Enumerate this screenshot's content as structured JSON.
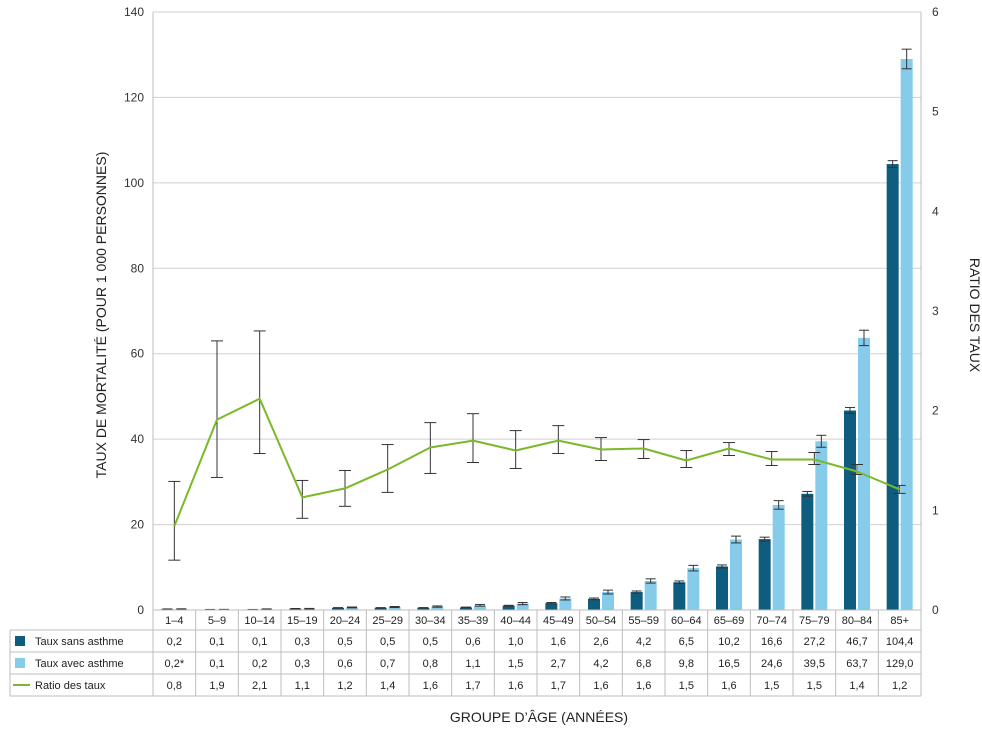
{
  "chart_data": {
    "type": "bar+line",
    "xlabel": "GROUPE D’ÂGE (ANNÉES)",
    "ylabel_left": "TAUX DE MORTALITÉ (POUR 1 000 PERSONNES)",
    "ylabel_right": "RATIO DES TAUX",
    "ylim_left": [
      0,
      140
    ],
    "ylim_right": [
      0,
      6
    ],
    "yticks_left": [
      "0",
      "20",
      "40",
      "60",
      "80",
      "100",
      "120",
      "140"
    ],
    "yticks_right": [
      "0",
      "1",
      "2",
      "3",
      "4",
      "5",
      "6"
    ],
    "categories": [
      "1–4",
      "5–9",
      "10–14",
      "15–19",
      "20–24",
      "25–29",
      "30–34",
      "35–39",
      "40–44",
      "45–49",
      "50–54",
      "55–59",
      "60–64",
      "65–69",
      "70–74",
      "75–79",
      "80–84",
      "85+"
    ],
    "series": [
      {
        "name": "Taux sans asthme",
        "kind": "bar",
        "axis": "left",
        "color": "#0e5c7e",
        "values": [
          0.2,
          0.1,
          0.1,
          0.3,
          0.5,
          0.5,
          0.5,
          0.6,
          1.0,
          1.6,
          2.6,
          4.2,
          6.5,
          10.2,
          16.6,
          27.2,
          46.7,
          104.4
        ],
        "labels": [
          "0,2",
          "0,1",
          "0,1",
          "0,3",
          "0,5",
          "0,5",
          "0,5",
          "0,6",
          "1,0",
          "1,6",
          "2,6",
          "4,2",
          "6,5",
          "10,2",
          "16,6",
          "27,2",
          "46,7",
          "104,4"
        ],
        "error": [
          0.05,
          0.03,
          0.03,
          0.05,
          0.06,
          0.06,
          0.07,
          0.08,
          0.1,
          0.15,
          0.2,
          0.25,
          0.3,
          0.35,
          0.45,
          0.55,
          0.7,
          0.8
        ]
      },
      {
        "name": "Taux avec asthme",
        "kind": "bar",
        "axis": "left",
        "color": "#86cbea",
        "values": [
          0.2,
          0.1,
          0.2,
          0.3,
          0.6,
          0.7,
          0.8,
          1.1,
          1.5,
          2.7,
          4.2,
          6.8,
          9.8,
          16.5,
          24.6,
          39.5,
          63.7,
          129.0
        ],
        "labels": [
          "0,2*",
          "0,1",
          "0,2",
          "0,3",
          "0,6",
          "0,7",
          "0,8",
          "1,1",
          "1,5",
          "2,7",
          "4,2",
          "6,8",
          "9,8",
          "16,5",
          "24,6",
          "39,5",
          "63,7",
          "129,0"
        ],
        "error": [
          0.08,
          0.05,
          0.06,
          0.07,
          0.1,
          0.12,
          0.15,
          0.2,
          0.25,
          0.35,
          0.45,
          0.5,
          0.65,
          0.8,
          1.0,
          1.4,
          1.8,
          2.3
        ]
      },
      {
        "name": "Ratio des taux",
        "kind": "line",
        "axis": "right",
        "color": "#7ab929",
        "values": [
          0.84,
          1.91,
          2.12,
          1.13,
          1.22,
          1.41,
          1.63,
          1.7,
          1.6,
          1.7,
          1.61,
          1.62,
          1.5,
          1.62,
          1.51,
          1.51,
          1.39,
          1.21
        ],
        "labels": [
          "0,8",
          "1,9",
          "2,1",
          "1,1",
          "1,2",
          "1,4",
          "1,6",
          "1,7",
          "1,6",
          "1,7",
          "1,6",
          "1,6",
          "1,5",
          "1,6",
          "1,5",
          "1,5",
          "1,4",
          "1,2"
        ],
        "ci_low": [
          0.5,
          1.33,
          1.57,
          0.92,
          1.04,
          1.18,
          1.37,
          1.48,
          1.42,
          1.57,
          1.5,
          1.52,
          1.43,
          1.55,
          1.45,
          1.46,
          1.36,
          1.17
        ],
        "ci_high": [
          1.29,
          2.7,
          2.8,
          1.3,
          1.4,
          1.66,
          1.88,
          1.97,
          1.8,
          1.85,
          1.73,
          1.71,
          1.6,
          1.68,
          1.59,
          1.58,
          1.46,
          1.25
        ]
      }
    ]
  }
}
